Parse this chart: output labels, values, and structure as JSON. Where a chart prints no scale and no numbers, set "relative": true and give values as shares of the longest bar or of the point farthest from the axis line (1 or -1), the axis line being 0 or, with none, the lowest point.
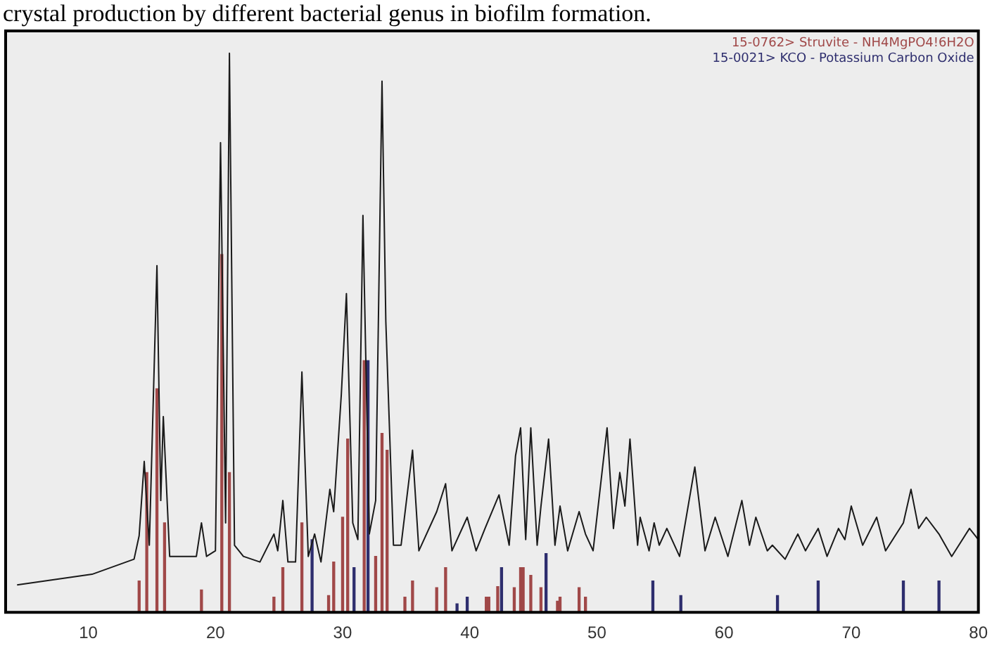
{
  "chart_data": {
    "type": "line",
    "title": "crystal production by different bacterial genus in biofilm formation.",
    "relative": true,
    "xlim": [
      3.5,
      80
    ],
    "xticks": [
      10,
      20,
      30,
      40,
      50,
      60,
      70,
      80
    ],
    "legend": "top right",
    "series": [
      {
        "color": "#1a1a1a",
        "x": [
          4.4,
          10.3,
          13.6,
          14.0,
          14.4,
          14.8,
          15.4,
          15.7,
          15.9,
          16.4,
          17.5,
          18.5,
          18.9,
          19.3,
          20.0,
          20.4,
          20.8,
          21.1,
          21.5,
          22.2,
          23.5,
          24.6,
          24.9,
          25.3,
          25.7,
          26.3,
          26.8,
          27.3,
          27.8,
          28.3,
          29.0,
          29.3,
          29.9,
          30.3,
          30.8,
          31.2,
          31.6,
          32.1,
          32.6,
          33.1,
          33.4,
          34.0,
          34.6,
          35.5,
          36.0,
          37.4,
          38.1,
          38.6,
          39.8,
          40.5,
          41.2,
          42.3,
          43.1,
          43.6,
          44.0,
          44.4,
          44.8,
          45.3,
          45.6,
          46.2,
          46.7,
          47.1,
          47.7,
          48.6,
          49.1,
          49.7,
          50.8,
          51.3,
          51.8,
          52.2,
          52.6,
          53.2,
          53.4,
          54.1,
          54.5,
          54.9,
          55.5,
          56.5,
          57.7,
          58.5,
          59.3,
          60.3,
          61.4,
          62.0,
          62.5,
          63.4,
          63.8,
          64.8,
          65.8,
          66.4,
          67.4,
          68.1,
          69.0,
          69.5,
          70.0,
          70.9,
          72.0,
          72.7,
          74.1,
          74.7,
          75.3,
          75.9,
          76.9,
          77.9,
          79.3,
          80
        ],
        "values": [
          0.049,
          0.068,
          0.095,
          0.137,
          0.27,
          0.12,
          0.62,
          0.2,
          0.35,
          0.1,
          0.1,
          0.1,
          0.16,
          0.1,
          0.11,
          0.84,
          0.16,
          1.0,
          0.12,
          0.1,
          0.09,
          0.14,
          0.11,
          0.2,
          0.09,
          0.09,
          0.43,
          0.1,
          0.14,
          0.09,
          0.22,
          0.18,
          0.39,
          0.57,
          0.16,
          0.13,
          0.71,
          0.14,
          0.2,
          0.95,
          0.52,
          0.12,
          0.12,
          0.29,
          0.11,
          0.18,
          0.23,
          0.11,
          0.17,
          0.11,
          0.15,
          0.21,
          0.12,
          0.28,
          0.33,
          0.13,
          0.33,
          0.12,
          0.19,
          0.31,
          0.12,
          0.19,
          0.11,
          0.18,
          0.14,
          0.11,
          0.33,
          0.15,
          0.25,
          0.19,
          0.31,
          0.12,
          0.17,
          0.11,
          0.16,
          0.12,
          0.15,
          0.1,
          0.26,
          0.11,
          0.17,
          0.1,
          0.2,
          0.12,
          0.17,
          0.11,
          0.12,
          0.095,
          0.14,
          0.11,
          0.15,
          0.1,
          0.15,
          0.13,
          0.19,
          0.12,
          0.17,
          0.11,
          0.16,
          0.22,
          0.15,
          0.17,
          0.14,
          0.1,
          0.15,
          0.13
        ]
      },
      {
        "type": "bar",
        "name": "15-0762> Struvite - NH4MgPO4!6H2O",
        "color": "#a04848",
        "x": [
          14.0,
          14.6,
          15.4,
          16.0,
          18.9,
          20.5,
          21.1,
          24.6,
          25.3,
          26.8,
          28.9,
          29.3,
          30.0,
          30.4,
          31.7,
          32.6,
          33.1,
          33.5,
          34.9,
          35.5,
          37.4,
          38.1,
          41.3,
          41.5,
          42.2,
          43.5,
          44.0,
          44.2,
          44.8,
          45.6,
          46.9,
          47.1,
          48.6,
          49.1
        ],
        "values": [
          0.056,
          0.25,
          0.4,
          0.16,
          0.04,
          0.64,
          0.25,
          0.027,
          0.08,
          0.16,
          0.03,
          0.09,
          0.17,
          0.31,
          0.45,
          0.1,
          0.32,
          0.29,
          0.027,
          0.056,
          0.044,
          0.08,
          0.027,
          0.027,
          0.046,
          0.044,
          0.08,
          0.08,
          0.066,
          0.044,
          0.02,
          0.027,
          0.044,
          0.027
        ]
      },
      {
        "type": "bar",
        "name": "15-0021> KCO - Potassium Carbon Oxide",
        "color": "#2e2e6e",
        "x": [
          27.6,
          30.9,
          32.0,
          39.0,
          39.8,
          42.5,
          46.0,
          54.4,
          56.6,
          64.2,
          67.4,
          74.1,
          76.9
        ],
        "values": [
          0.13,
          0.08,
          0.45,
          0.015,
          0.027,
          0.08,
          0.105,
          0.056,
          0.03,
          0.03,
          0.056,
          0.056,
          0.056
        ]
      }
    ]
  }
}
